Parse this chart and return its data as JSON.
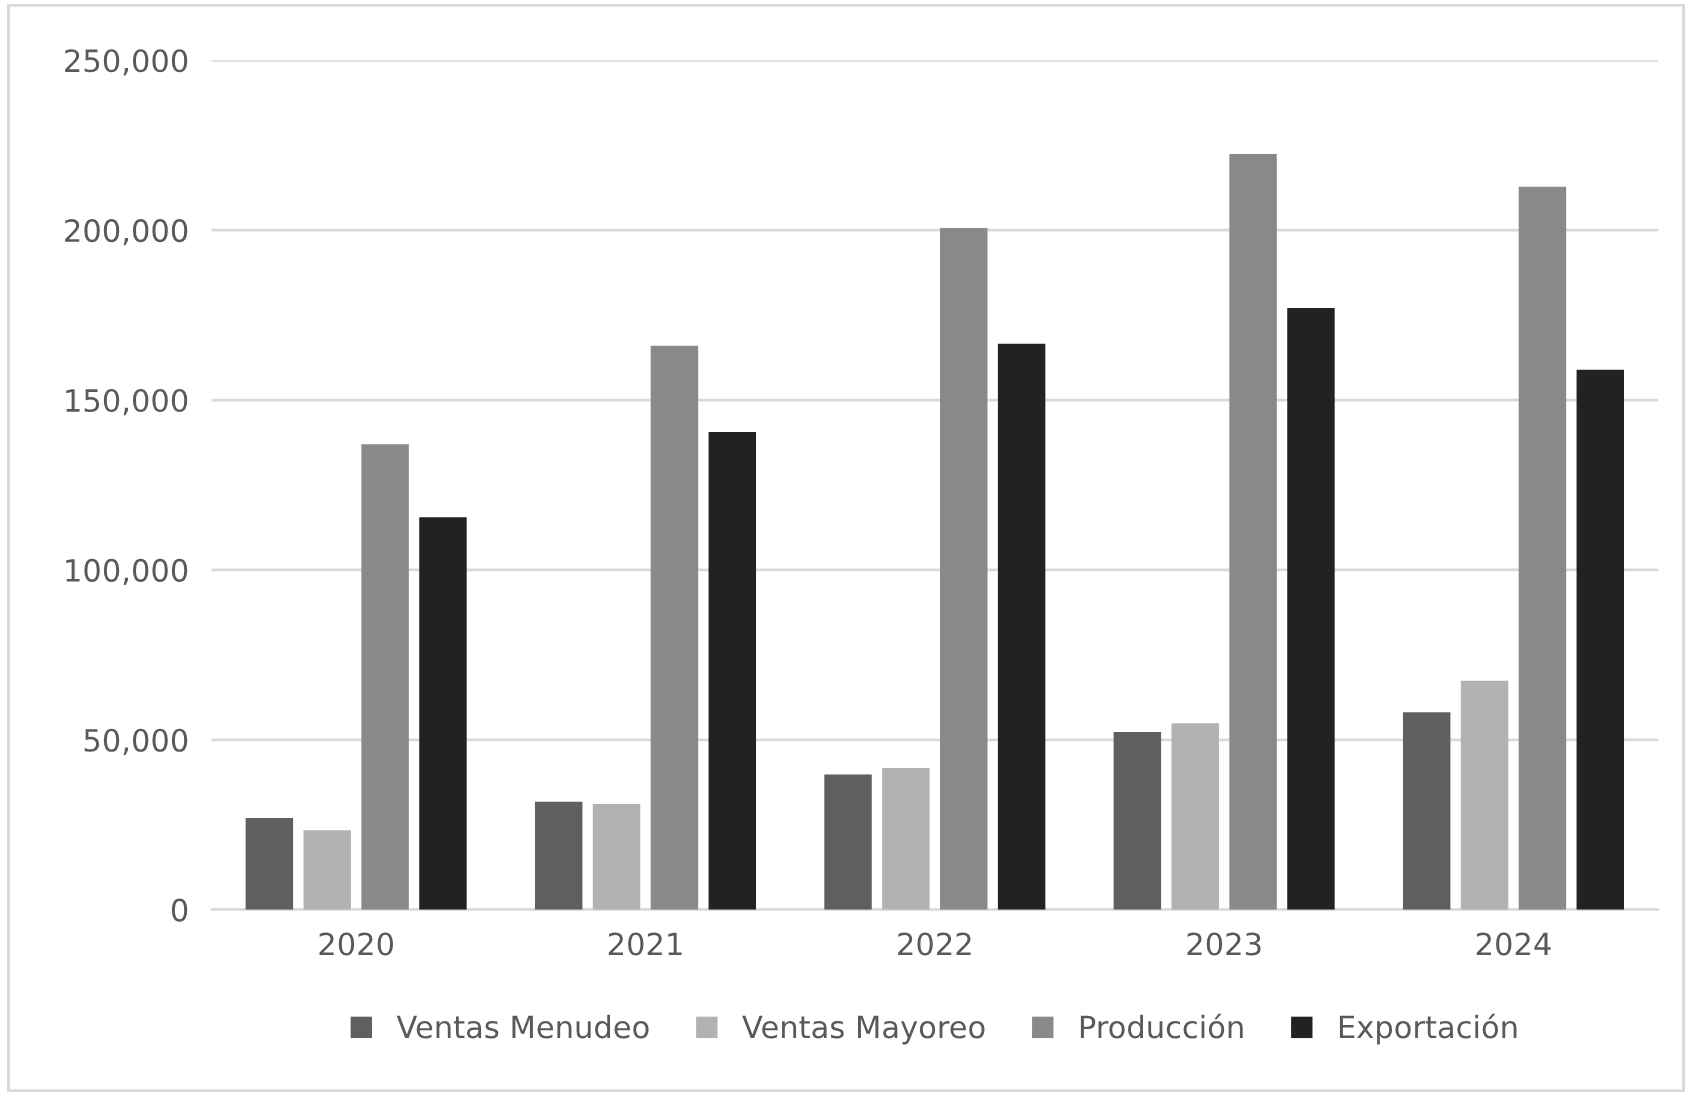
{
  "chart_data": {
    "type": "bar",
    "categories": [
      "2020",
      "2021",
      "2022",
      "2023",
      "2024"
    ],
    "series": [
      {
        "name": "Ventas Menudeo",
        "color": "#5f5f5f",
        "values": [
          27000,
          31800,
          39800,
          52300,
          58100
        ]
      },
      {
        "name": "Ventas Mayoreo",
        "color": "#b2b2b2",
        "values": [
          23400,
          31100,
          41700,
          54900,
          67400
        ]
      },
      {
        "name": "Producción",
        "color": "#898989",
        "values": [
          137000,
          166000,
          200600,
          222400,
          212800
        ]
      },
      {
        "name": "Exportación",
        "color": "#222222",
        "values": [
          115500,
          140600,
          166600,
          177100,
          158900
        ]
      }
    ],
    "ylim": [
      0,
      250000
    ],
    "yticks": [
      {
        "value": 0,
        "label": "0"
      },
      {
        "value": 50000,
        "label": "50,000"
      },
      {
        "value": 100000,
        "label": "100,000"
      },
      {
        "value": 150000,
        "label": "150,000"
      },
      {
        "value": 200000,
        "label": "200,000"
      },
      {
        "value": 250000,
        "label": "250,000"
      }
    ],
    "grid": "y",
    "legend": "bottom"
  }
}
